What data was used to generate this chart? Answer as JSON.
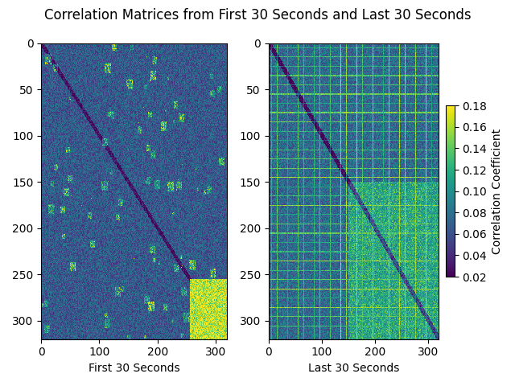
{
  "title": "Correlation Matrices from First 30 Seconds and Last 30 Seconds",
  "title_fontsize": 12,
  "subplot1_xlabel": "First 30 Seconds",
  "subplot2_xlabel": "Last 30 Seconds",
  "colorbar_label": "Correlation Coefficient",
  "cmap": "viridis",
  "vmin": 0.02,
  "vmax": 0.18,
  "N": 320,
  "xticks": [
    0,
    100,
    200,
    300
  ],
  "yticks": [
    0,
    50,
    100,
    150,
    200,
    250,
    300
  ],
  "colorbar_ticks": [
    0.02,
    0.04,
    0.06,
    0.08,
    0.1,
    0.12,
    0.14,
    0.16,
    0.18
  ],
  "figsize": [
    6.4,
    4.8
  ],
  "dpi": 100
}
